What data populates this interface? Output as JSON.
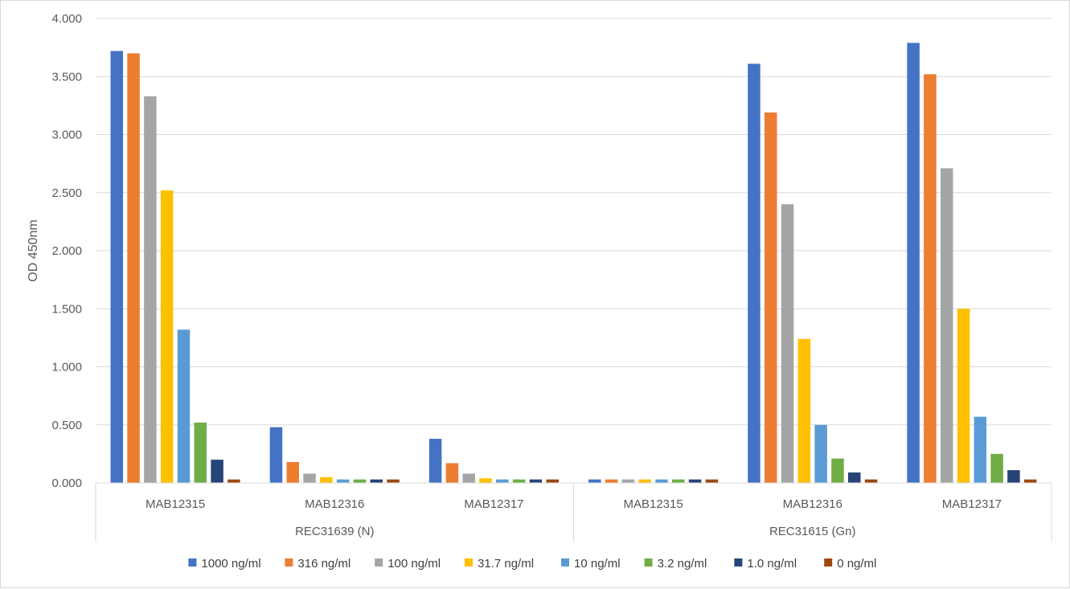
{
  "chart_data": {
    "type": "bar",
    "title": "",
    "ylabel": "OD 450nm",
    "xlabel": "",
    "ylim": [
      0,
      4
    ],
    "yticks": [
      "0.000",
      "0.500",
      "1.000",
      "1.500",
      "2.000",
      "2.500",
      "3.000",
      "3.500",
      "4.000"
    ],
    "ytick_values": [
      0,
      0.5,
      1,
      1.5,
      2,
      2.5,
      3,
      3.5,
      4
    ],
    "grid": true,
    "legend_position": "bottom",
    "groups": [
      {
        "label": "REC31639 (N)",
        "categories": [
          "MAB12315",
          "MAB12316",
          "MAB12317"
        ]
      },
      {
        "label": "REC31615 (Gn)",
        "categories": [
          "MAB12315",
          "MAB12316",
          "MAB12317"
        ]
      }
    ],
    "series": [
      {
        "name": "1000 ng/ml",
        "color": "#4472C4",
        "values": [
          3.72,
          0.48,
          0.38,
          0.03,
          3.61,
          3.79
        ]
      },
      {
        "name": "316 ng/ml",
        "color": "#ED7D31",
        "values": [
          3.7,
          0.18,
          0.17,
          0.03,
          3.19,
          3.52
        ]
      },
      {
        "name": "100 ng/ml",
        "color": "#A5A5A5",
        "values": [
          3.33,
          0.08,
          0.08,
          0.03,
          2.4,
          2.71
        ]
      },
      {
        "name": "31.7 ng/ml",
        "color": "#FFC000",
        "values": [
          2.52,
          0.05,
          0.04,
          0.03,
          1.24,
          1.5
        ]
      },
      {
        "name": "10 ng/ml",
        "color": "#5B9BD5",
        "values": [
          1.32,
          0.03,
          0.03,
          0.03,
          0.5,
          0.57
        ]
      },
      {
        "name": "3.2 ng/ml",
        "color": "#70AD47",
        "values": [
          0.52,
          0.03,
          0.03,
          0.03,
          0.21,
          0.25
        ]
      },
      {
        "name": "1.0 ng/ml",
        "color": "#264478",
        "values": [
          0.2,
          0.03,
          0.03,
          0.03,
          0.09,
          0.11
        ]
      },
      {
        "name": "0 ng/ml",
        "color": "#9E480E",
        "values": [
          0.03,
          0.03,
          0.03,
          0.03,
          0.03,
          0.03
        ]
      }
    ]
  }
}
